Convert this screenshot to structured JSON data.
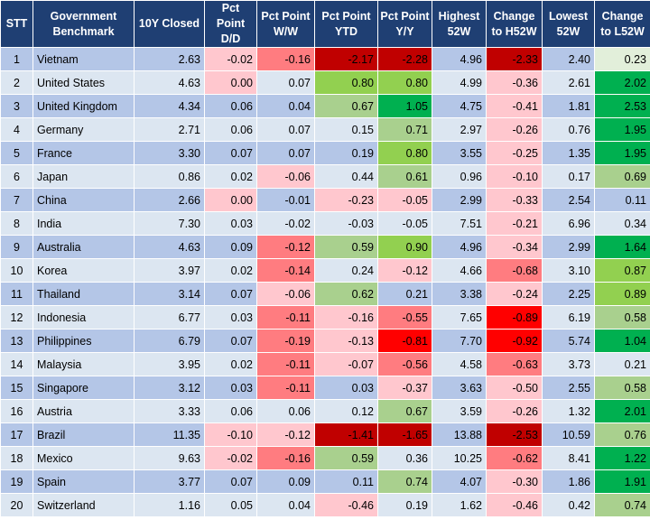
{
  "headers": [
    "STT",
    "Government Benchmark",
    "10Y Closed",
    "Pct Point D/D",
    "Pct Point W/W",
    "Pct Point YTD",
    "Pct Point Y/Y",
    "Highest 52W",
    "Change to H52W",
    "Lowest 52W",
    "Change to L52W"
  ],
  "colors": {
    "header_bg": "#1f3f73",
    "row_odd": "#b4c6e7",
    "row_even": "#dce6f1",
    "dark_red": "#c00000",
    "red": "#ff0000",
    "medium_red": "#ff7c80",
    "light_red": "#ffc7ce",
    "dark_green": "#00b050",
    "green": "#92d050",
    "light_green": "#a9d08e",
    "pale_green": "#e2efda"
  },
  "rows": [
    {
      "stt": "1",
      "name": "Vietnam",
      "closed": "2.63",
      "dd": "-0.02",
      "ww": "-0.16",
      "ytd": "-2.17",
      "yy": "-2.28",
      "h52": "4.96",
      "ch52": "-2.33",
      "l52": "2.40",
      "cl52": "0.23"
    },
    {
      "stt": "2",
      "name": "United States",
      "closed": "4.63",
      "dd": "0.00",
      "ww": "0.07",
      "ytd": "0.80",
      "yy": "0.80",
      "h52": "4.99",
      "ch52": "-0.36",
      "l52": "2.61",
      "cl52": "2.02"
    },
    {
      "stt": "3",
      "name": "United Kingdom",
      "closed": "4.34",
      "dd": "0.06",
      "ww": "0.04",
      "ytd": "0.67",
      "yy": "1.05",
      "h52": "4.75",
      "ch52": "-0.41",
      "l52": "1.81",
      "cl52": "2.53"
    },
    {
      "stt": "4",
      "name": "Germany",
      "closed": "2.71",
      "dd": "0.06",
      "ww": "0.07",
      "ytd": "0.15",
      "yy": "0.71",
      "h52": "2.97",
      "ch52": "-0.26",
      "l52": "0.76",
      "cl52": "1.95"
    },
    {
      "stt": "5",
      "name": "France",
      "closed": "3.30",
      "dd": "0.07",
      "ww": "0.07",
      "ytd": "0.19",
      "yy": "0.80",
      "h52": "3.55",
      "ch52": "-0.25",
      "l52": "1.35",
      "cl52": "1.95"
    },
    {
      "stt": "6",
      "name": "Japan",
      "closed": "0.86",
      "dd": "0.02",
      "ww": "-0.06",
      "ytd": "0.44",
      "yy": "0.61",
      "h52": "0.96",
      "ch52": "-0.10",
      "l52": "0.17",
      "cl52": "0.69"
    },
    {
      "stt": "7",
      "name": "China",
      "closed": "2.66",
      "dd": "0.00",
      "ww": "-0.01",
      "ytd": "-0.23",
      "yy": "-0.05",
      "h52": "2.99",
      "ch52": "-0.33",
      "l52": "2.54",
      "cl52": "0.11"
    },
    {
      "stt": "8",
      "name": "India",
      "closed": "7.30",
      "dd": "0.03",
      "ww": "-0.02",
      "ytd": "-0.03",
      "yy": "-0.05",
      "h52": "7.51",
      "ch52": "-0.21",
      "l52": "6.96",
      "cl52": "0.34"
    },
    {
      "stt": "9",
      "name": "Australia",
      "closed": "4.63",
      "dd": "0.09",
      "ww": "-0.12",
      "ytd": "0.59",
      "yy": "0.90",
      "h52": "4.96",
      "ch52": "-0.34",
      "l52": "2.99",
      "cl52": "1.64"
    },
    {
      "stt": "10",
      "name": "Korea",
      "closed": "3.97",
      "dd": "0.02",
      "ww": "-0.14",
      "ytd": "0.24",
      "yy": "-0.12",
      "h52": "4.66",
      "ch52": "-0.68",
      "l52": "3.10",
      "cl52": "0.87"
    },
    {
      "stt": "11",
      "name": "Thailand",
      "closed": "3.14",
      "dd": "0.07",
      "ww": "-0.06",
      "ytd": "0.62",
      "yy": "0.21",
      "h52": "3.38",
      "ch52": "-0.24",
      "l52": "2.25",
      "cl52": "0.89"
    },
    {
      "stt": "12",
      "name": "Indonesia",
      "closed": "6.77",
      "dd": "0.03",
      "ww": "-0.11",
      "ytd": "-0.16",
      "yy": "-0.55",
      "h52": "7.65",
      "ch52": "-0.89",
      "l52": "6.19",
      "cl52": "0.58"
    },
    {
      "stt": "13",
      "name": "Philippines",
      "closed": "6.79",
      "dd": "0.07",
      "ww": "-0.19",
      "ytd": "-0.13",
      "yy": "-0.81",
      "h52": "7.70",
      "ch52": "-0.92",
      "l52": "5.74",
      "cl52": "1.04"
    },
    {
      "stt": "14",
      "name": "Malaysia",
      "closed": "3.95",
      "dd": "0.02",
      "ww": "-0.11",
      "ytd": "-0.07",
      "yy": "-0.56",
      "h52": "4.58",
      "ch52": "-0.63",
      "l52": "3.73",
      "cl52": "0.21"
    },
    {
      "stt": "15",
      "name": "Singapore",
      "closed": "3.12",
      "dd": "0.03",
      "ww": "-0.11",
      "ytd": "0.03",
      "yy": "-0.37",
      "h52": "3.63",
      "ch52": "-0.50",
      "l52": "2.55",
      "cl52": "0.58"
    },
    {
      "stt": "16",
      "name": "Austria",
      "closed": "3.33",
      "dd": "0.06",
      "ww": "0.06",
      "ytd": "0.12",
      "yy": "0.67",
      "h52": "3.59",
      "ch52": "-0.26",
      "l52": "1.32",
      "cl52": "2.01"
    },
    {
      "stt": "17",
      "name": "Brazil",
      "closed": "11.35",
      "dd": "-0.10",
      "ww": "-0.12",
      "ytd": "-1.41",
      "yy": "-1.65",
      "h52": "13.88",
      "ch52": "-2.53",
      "l52": "10.59",
      "cl52": "0.76"
    },
    {
      "stt": "18",
      "name": "Mexico",
      "closed": "9.63",
      "dd": "-0.02",
      "ww": "-0.16",
      "ytd": "0.59",
      "yy": "0.36",
      "h52": "10.25",
      "ch52": "-0.62",
      "l52": "8.41",
      "cl52": "1.22"
    },
    {
      "stt": "19",
      "name": "Spain",
      "closed": "3.77",
      "dd": "0.07",
      "ww": "0.09",
      "ytd": "0.11",
      "yy": "0.74",
      "h52": "4.07",
      "ch52": "-0.30",
      "l52": "1.86",
      "cl52": "1.91"
    },
    {
      "stt": "20",
      "name": "Switzerland",
      "closed": "1.16",
      "dd": "0.05",
      "ww": "0.04",
      "ytd": "-0.46",
      "yy": "0.19",
      "h52": "1.62",
      "ch52": "-0.46",
      "l52": "0.42",
      "cl52": "0.74"
    }
  ]
}
